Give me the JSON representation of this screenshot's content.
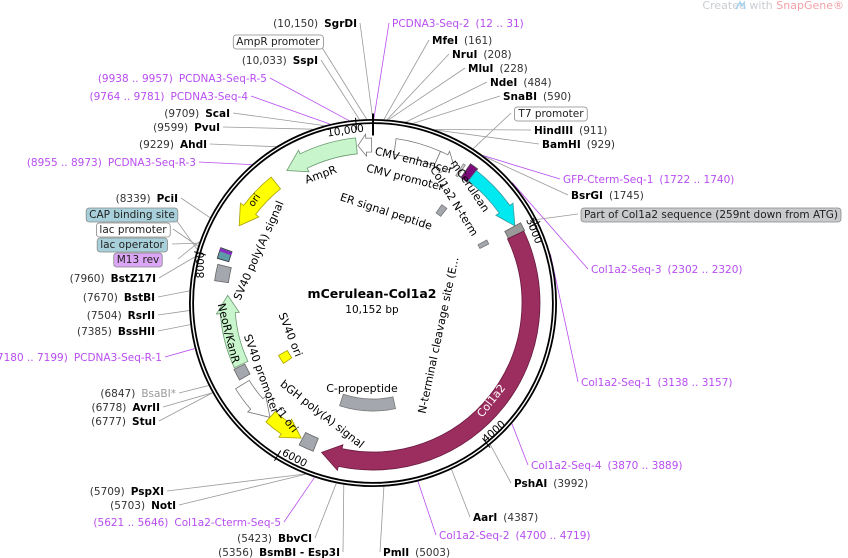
{
  "watermark": {
    "prefix": "Created with ",
    "brand": "SnapGene®"
  },
  "plasmid": {
    "name": "mCerulean-Col1a2",
    "length": "10,152 bp"
  },
  "ticks": {
    "t10000": "10,000",
    "t3000": "3000",
    "t4000": "4000",
    "t6000": "6000",
    "t8000": "8000"
  },
  "features": {
    "ampr": "AmpR",
    "cmv_enhancer": "CMV enhancer",
    "cmv_promoter": "CMV promoter",
    "ori": "ori",
    "sv40_polya": "SV40 poly(A) signal",
    "er_signal": "ER signal peptide",
    "mcerulean": "mCerulean",
    "col1a2_nterm": "Col1a2 N-term",
    "nterm_cleavage": "N-terminal cleavage site (E...",
    "neor": "NeoR/KanR",
    "sv40_promoter": "SV40 promoter",
    "sv40_ori": "SV40 ori",
    "bgh_polya": "bGH poly(A) signal",
    "f1_ori": "f1 ori",
    "c_propeptide": "C-propeptide",
    "col1a2": "Col1a2"
  },
  "sites": [
    {
      "name": "SgrDI",
      "pos": "10,150"
    },
    {
      "name": "SspI",
      "pos": "10,033"
    },
    {
      "name": "ScaI",
      "pos": "9709"
    },
    {
      "name": "PvuI",
      "pos": "9599"
    },
    {
      "name": "AhdI",
      "pos": "9229"
    },
    {
      "name": "PciI",
      "pos": "8339"
    },
    {
      "name": "BstZ17I",
      "pos": "7960"
    },
    {
      "name": "BstBI",
      "pos": "7670"
    },
    {
      "name": "RsrII",
      "pos": "7504"
    },
    {
      "name": "BssHII",
      "pos": "7385"
    },
    {
      "name": "BsaBI*",
      "pos": "6847"
    },
    {
      "name": "AvrII",
      "pos": "6778"
    },
    {
      "name": "StuI",
      "pos": "6777"
    },
    {
      "name": "PspXI",
      "pos": "5709"
    },
    {
      "name": "NotI",
      "pos": "5703"
    },
    {
      "name": "BbvCI",
      "pos": "5423"
    },
    {
      "name": "BsmBI - Esp3I",
      "pos": "5356"
    },
    {
      "name": "MfeI",
      "pos": "161"
    },
    {
      "name": "NruI",
      "pos": "208"
    },
    {
      "name": "MluI",
      "pos": "228"
    },
    {
      "name": "NdeI",
      "pos": "484"
    },
    {
      "name": "SnaBI",
      "pos": "590"
    },
    {
      "name": "HindIII",
      "pos": "911"
    },
    {
      "name": "BamHI",
      "pos": "929"
    },
    {
      "name": "BsrGI",
      "pos": "1745"
    },
    {
      "name": "PshAI",
      "pos": "3992"
    },
    {
      "name": "AarI",
      "pos": "4387"
    },
    {
      "name": "PmlI",
      "pos": "5003"
    }
  ],
  "primers": [
    {
      "name": "PCDNA3-Seq-2",
      "range": "12 .. 31"
    },
    {
      "name": "PCDNA3-Seq-R-5",
      "range": "9938 .. 9957"
    },
    {
      "name": "PCDNA3-Seq-4",
      "range": "9764 .. 9781"
    },
    {
      "name": "PCDNA3-Seq-R-3",
      "range": "8955 .. 8973"
    },
    {
      "name": "PCDNA3-Seq-R-1",
      "range": "7180 .. 7199"
    },
    {
      "name": "Col1a2-Cterm-Seq-5",
      "range": "5621 .. 5646"
    },
    {
      "name": "GFP-Cterm-Seq-1",
      "range": "1722 .. 1740"
    },
    {
      "name": "Col1a2-Seq-3",
      "range": "2302 .. 2320"
    },
    {
      "name": "Col1a2-Seq-1",
      "range": "3138 .. 3157"
    },
    {
      "name": "Col1a2-Seq-4",
      "range": "3870 .. 3889"
    },
    {
      "name": "Col1a2-Seq-2",
      "range": "4700 .. 4719"
    }
  ],
  "boxed": [
    {
      "label": "AmpR promoter",
      "color": "#ffffff"
    },
    {
      "label": "T7 promoter",
      "color": "#ffffff"
    },
    {
      "label": "CAP binding site",
      "color": "#a8d0da"
    },
    {
      "label": "lac promoter",
      "color": "#ffffff"
    },
    {
      "label": "lac operator",
      "color": "#a8d0da"
    },
    {
      "label": "M13 rev",
      "color": "#dba6f5"
    },
    {
      "label": "Part of Col1a2 sequence (259nt down from ATG)",
      "color": "#c8cacc"
    }
  ],
  "colors": {
    "backbone": "#000000",
    "primer": "#b84df0",
    "ampr": "#c8f5cc",
    "mcerulean": "#00e8f0",
    "col1a2": "#9b2d5f",
    "yellow": "#ffff00",
    "grey_feature": "#a4a8ae"
  }
}
